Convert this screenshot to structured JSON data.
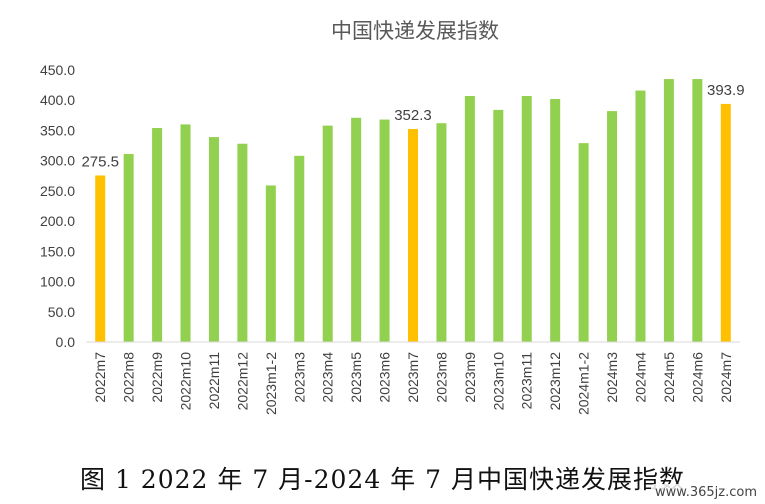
{
  "chart_data": {
    "type": "bar",
    "title": "中国快递发展指数",
    "categories": [
      "2022m7",
      "2022m8",
      "2022m9",
      "2022m10",
      "2022m11",
      "2022m12",
      "2023m1-2",
      "2023m3",
      "2023m4",
      "2023m5",
      "2023m6",
      "2023m7",
      "2023m8",
      "2023m9",
      "2023m10",
      "2023m11",
      "2023m12",
      "2024m1-2",
      "2024m3",
      "2024m4",
      "2024m5",
      "2024m6",
      "2024m7"
    ],
    "values": [
      275.5,
      311,
      354,
      360,
      339,
      328,
      259,
      308,
      358,
      371,
      368,
      352.3,
      362,
      407,
      384,
      407,
      402,
      329,
      382,
      416,
      435,
      435,
      393.9
    ],
    "highlighted": [
      0,
      11,
      22
    ],
    "data_labels": {
      "0": "275.5",
      "11": "352.3",
      "22": "393.9"
    },
    "y_ticks": [
      "0.0",
      "50.0",
      "100.0",
      "150.0",
      "200.0",
      "250.0",
      "300.0",
      "350.0",
      "400.0",
      "450.0"
    ],
    "ylim": [
      0,
      450
    ],
    "grid": false,
    "colors": {
      "bar": "#92D050",
      "highlight": "#FFC000"
    }
  },
  "caption": "图 1 2022 年 7 月-2024 年 7 月中国快递发展指数",
  "watermark": "www.365jz.com"
}
